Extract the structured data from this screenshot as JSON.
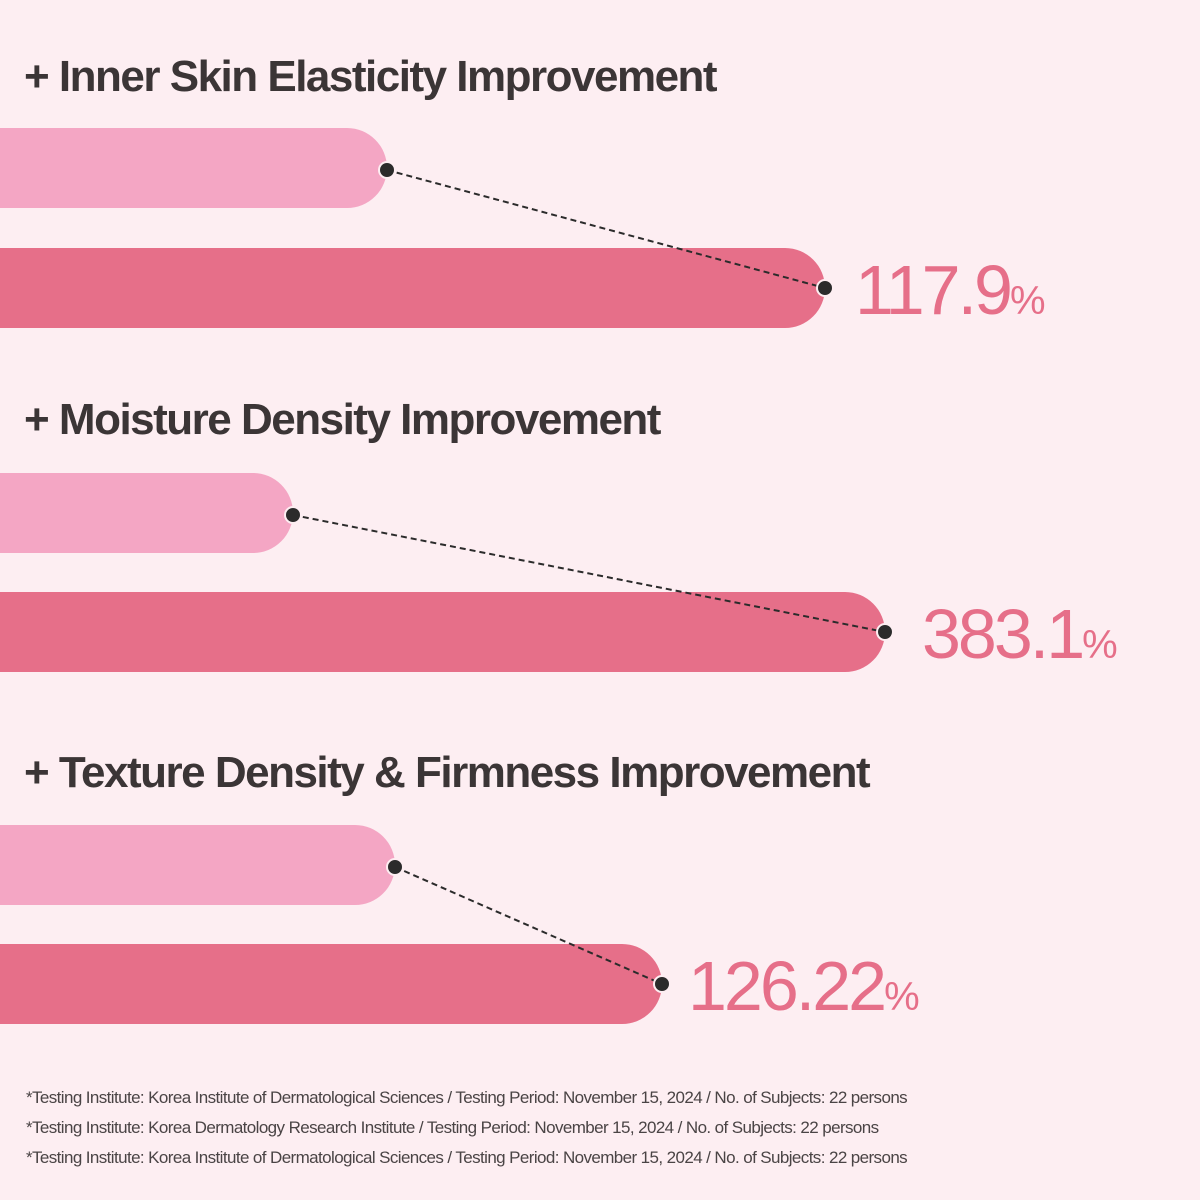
{
  "colors": {
    "background": "#fdeef2",
    "before_bar": "#f4a6c4",
    "after_bar": "#e66f89",
    "value_text": "#e66f89",
    "title_text": "#3b3536",
    "marker": "#2b2b2b"
  },
  "chart_data": {
    "type": "bar",
    "orientation": "horizontal",
    "categories": [
      "+ Inner Skin Elasticity Improvement",
      "+ Moisture Density Improvement",
      "+ Texture Density & Firmness Improvement"
    ],
    "series": [
      {
        "values": [
          117.9,
          383.1,
          126.22
        ]
      }
    ],
    "value_labels": [
      "117.9",
      "383.1",
      "126.22"
    ],
    "unit": "%",
    "axes_shown": false,
    "grid": false
  },
  "footnotes": [
    "*Testing Institute: Korea Institute of Dermatological Sciences / Testing Period: November 15, 2024 / No. of Subjects: 22 persons",
    "*Testing Institute: Korea Dermatology Research Institute / Testing Period: November 15, 2024 / No. of Subjects: 22 persons",
    "*Testing Institute: Korea Institute of Dermatological Sciences / Testing Period: November 15, 2024 / No. of Subjects: 22 persons"
  ]
}
